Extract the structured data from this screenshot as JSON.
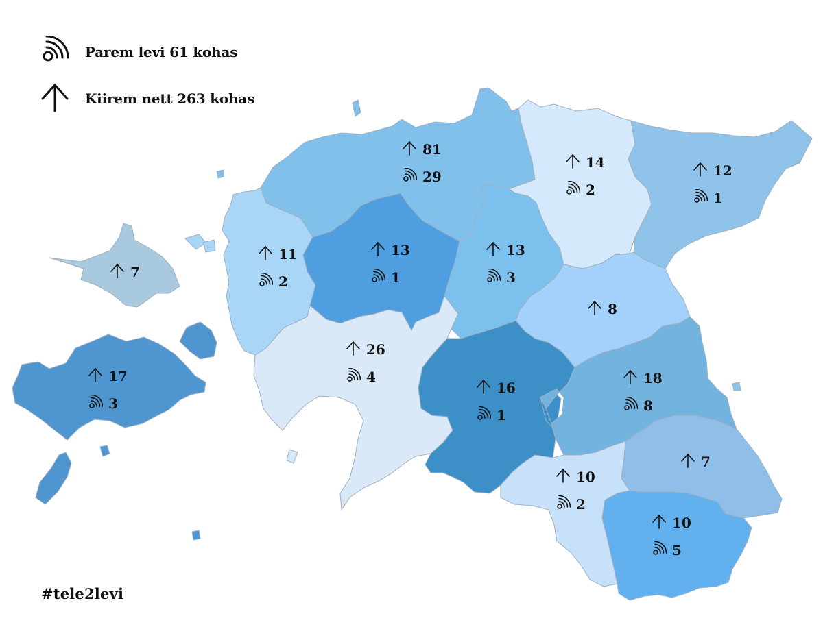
{
  "legend": {
    "coverage": "Parem levi 61 kohas",
    "speed": "Kiirem nett 263 kohas"
  },
  "hashtag": "#tele2levi",
  "icons": {
    "speed": "arrow-up-icon",
    "coverage": "signal-icon"
  },
  "regions": [
    {
      "name": "harju",
      "color": "#82c0ec",
      "speed": "81",
      "coverage": "29"
    },
    {
      "name": "laane-viru",
      "color": "#d4eafc",
      "speed": "14",
      "coverage": "2"
    },
    {
      "name": "ida-viru",
      "color": "#8fc3ea",
      "speed": "12",
      "coverage": "1"
    },
    {
      "name": "hiiu",
      "color": "#a8c9de",
      "speed": "7"
    },
    {
      "name": "laane",
      "color": "#a9d6f7",
      "speed": "11",
      "coverage": "2"
    },
    {
      "name": "rapla",
      "color": "#4f9ee0",
      "speed": "13",
      "coverage": "1"
    },
    {
      "name": "jarva",
      "color": "#7cc1ee",
      "speed": "13",
      "coverage": "3"
    },
    {
      "name": "jogeva",
      "color": "#a3d1fb",
      "speed": "8"
    },
    {
      "name": "saare",
      "color": "#4f95d0",
      "speed": "17",
      "coverage": "3"
    },
    {
      "name": "parnu",
      "color": "#dae9f7",
      "speed": "26",
      "coverage": "4"
    },
    {
      "name": "viljandi",
      "color": "#3c90c7",
      "speed": "16",
      "coverage": "1"
    },
    {
      "name": "tartu",
      "color": "#72b3e0",
      "speed": "18",
      "coverage": "8"
    },
    {
      "name": "polva",
      "color": "#8fbee9",
      "speed": "7"
    },
    {
      "name": "valga",
      "color": "#c8e1fa",
      "speed": "10",
      "coverage": "2"
    },
    {
      "name": "voru",
      "color": "#62b0ee",
      "speed": "10",
      "coverage": "5"
    }
  ]
}
